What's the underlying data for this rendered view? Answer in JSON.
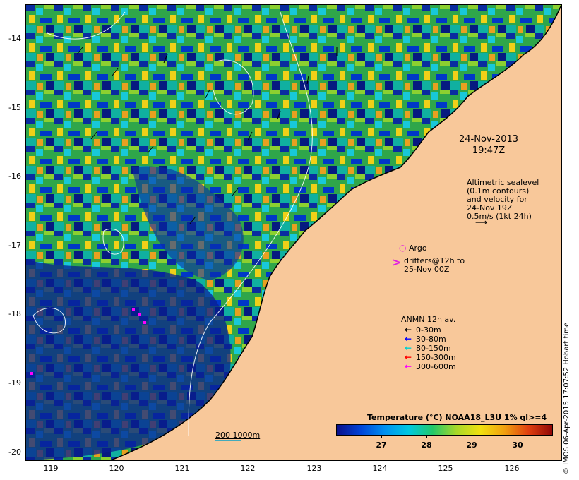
{
  "map": {
    "y_axis_ticks": [
      "-14",
      "-15",
      "-16",
      "-17",
      "-18",
      "-19",
      "-20"
    ],
    "x_axis_ticks": [
      "119",
      "120",
      "121",
      "122",
      "123",
      "124",
      "125",
      "126"
    ],
    "land_color": "#f8c89a",
    "background_note": "sea surface temperature field",
    "date_label_line1": "24-Nov-2013",
    "date_label_line2": "19:47Z",
    "altimetry_text": [
      "Altimetric sealevel",
      "(0.1m contours)",
      "and velocity for",
      "24-Nov 19Z",
      "0.5m/s (1kt 24h)"
    ],
    "argo_label": "Argo",
    "drifters_label_line1": "drifters@12h to",
    "drifters_label_line2": "25-Nov 00Z",
    "scale_label": "200  1000m",
    "credit": "© IMOS 06-Apr-2015 17:07:52 Hobart time"
  },
  "legend": {
    "title": "ANMN 12h av.",
    "items": [
      {
        "label": "0-30m",
        "color": "#000000"
      },
      {
        "label": "30-80m",
        "color": "#0000ff"
      },
      {
        "label": "80-150m",
        "color": "#00e0e0"
      },
      {
        "label": "150-300m",
        "color": "#ff0000"
      },
      {
        "label": "300-600m",
        "color": "#ff00ff"
      }
    ]
  },
  "colorbar": {
    "title": "Temperature (°C) NOAA18_L3U 1% ql>=4",
    "ticks": [
      "27",
      "28",
      "29",
      "30"
    ]
  }
}
